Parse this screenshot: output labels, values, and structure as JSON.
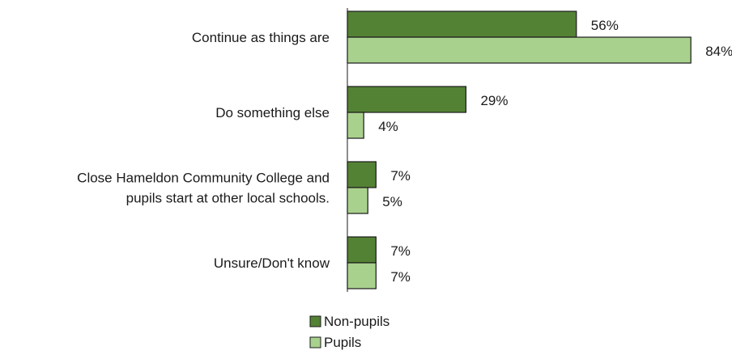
{
  "chart_data": {
    "type": "bar",
    "orientation": "horizontal",
    "categories": [
      [
        "Continue as things are"
      ],
      [
        "Do something else"
      ],
      [
        "Close Hameldon Community College and",
        "pupils start at other local schools."
      ],
      [
        "Unsure/Don't know"
      ]
    ],
    "series": [
      {
        "name": "Non-pupils",
        "color": "#548235",
        "values": [
          56,
          29,
          7,
          7
        ],
        "labels": [
          "56%",
          "29%",
          "7%",
          "7%"
        ]
      },
      {
        "name": "Pupils",
        "color": "#a9d18e",
        "values": [
          84,
          4,
          5,
          7
        ],
        "labels": [
          "84%",
          "4%",
          "5%",
          "7%"
        ]
      }
    ],
    "value_unit": "%",
    "xlim": [
      0,
      100
    ],
    "grid": false,
    "axis_line": true,
    "legend_position": "bottom"
  }
}
